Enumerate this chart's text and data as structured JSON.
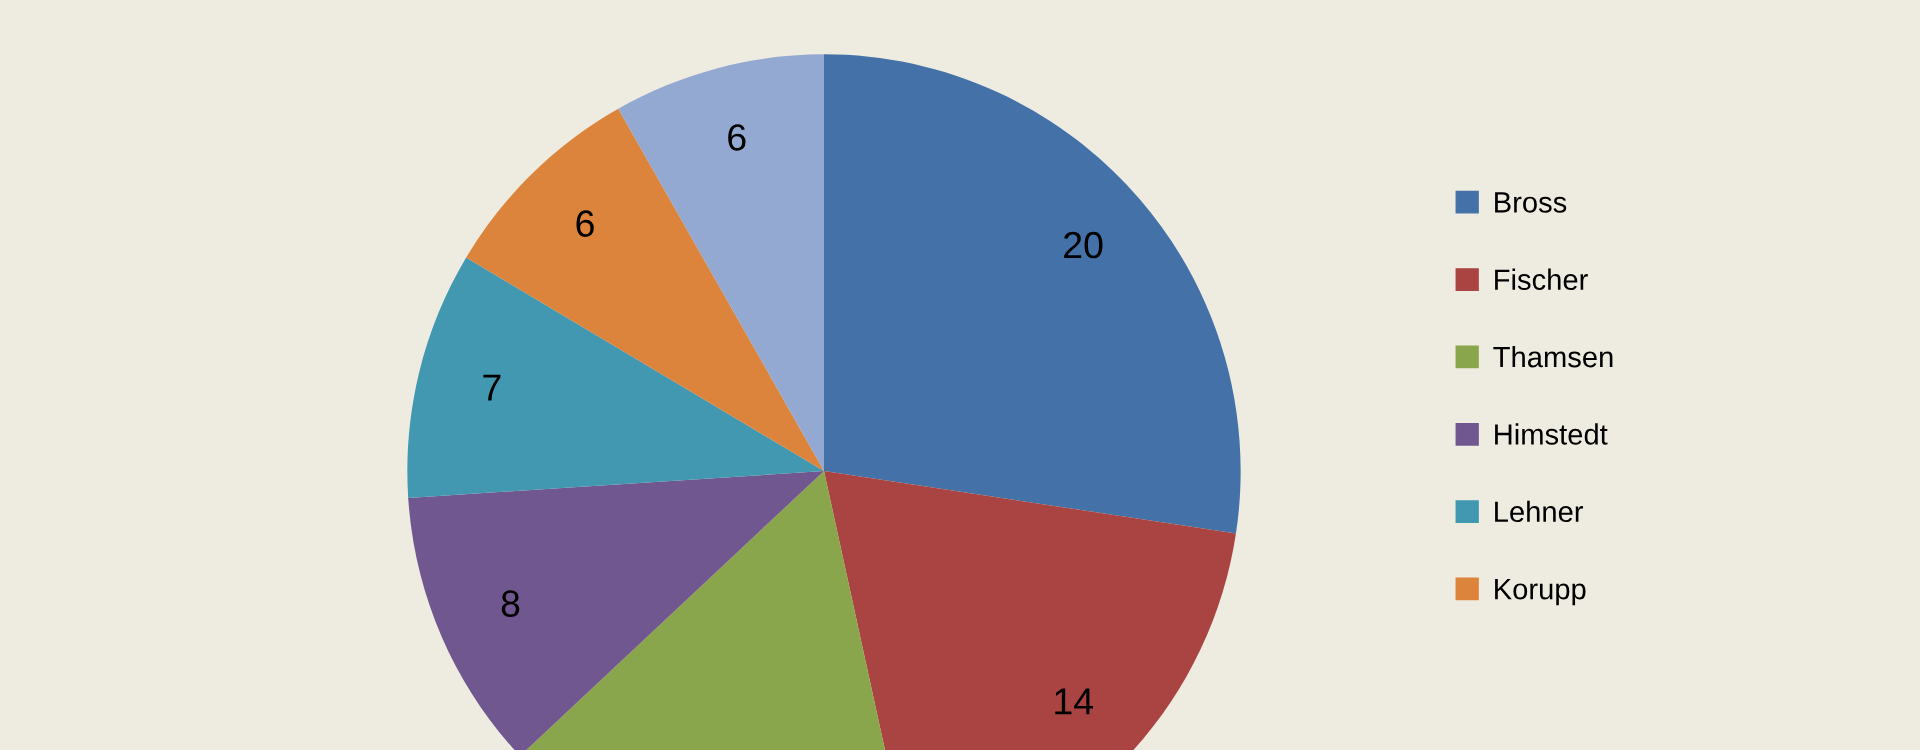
{
  "chart_data": {
    "type": "pie",
    "categories": [
      "Bross",
      "Fischer",
      "Thamsen",
      "Himstedt",
      "Lehner",
      "Korupp",
      null
    ],
    "values": [
      20,
      14,
      12,
      8,
      7,
      6,
      6
    ],
    "value_labels": [
      "20",
      "14",
      null,
      "8",
      "7",
      "6",
      "6"
    ],
    "colors": [
      "#4472a8",
      "#a94442",
      "#8aa64c",
      "#715790",
      "#4198b0",
      "#dc843c",
      "#93a9d1"
    ],
    "legend": "right"
  }
}
